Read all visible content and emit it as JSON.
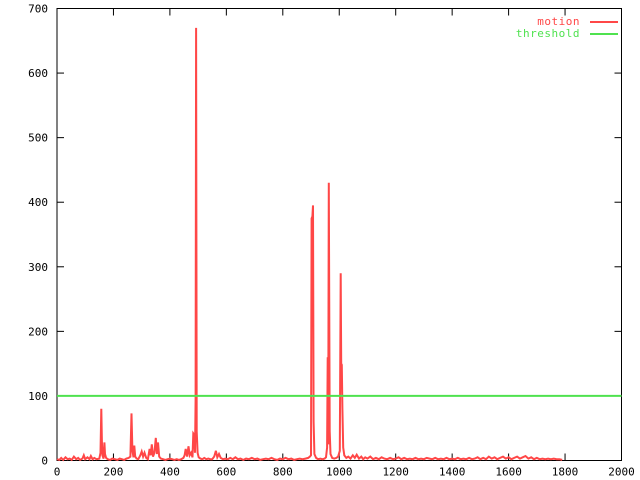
{
  "page": {
    "background": "#ffffff"
  },
  "chart_data": {
    "type": "line",
    "title": "",
    "xlabel": "",
    "ylabel": "",
    "xlim": [
      0,
      2000
    ],
    "ylim": [
      0,
      700
    ],
    "xticks": [
      0,
      200,
      400,
      600,
      800,
      1000,
      1200,
      1400,
      1600,
      1800,
      2000
    ],
    "yticks": [
      0,
      100,
      200,
      300,
      400,
      500,
      600,
      700
    ],
    "grid": false,
    "legend_position": "top-right-inside",
    "threshold_value": 100,
    "series": [
      {
        "name": "motion",
        "color": "#ff4747",
        "points": [
          [
            0,
            2
          ],
          [
            8,
            1
          ],
          [
            15,
            4
          ],
          [
            22,
            1
          ],
          [
            30,
            5
          ],
          [
            38,
            2
          ],
          [
            45,
            3
          ],
          [
            52,
            1
          ],
          [
            60,
            6
          ],
          [
            68,
            2
          ],
          [
            75,
            4
          ],
          [
            82,
            1
          ],
          [
            90,
            3
          ],
          [
            95,
            8
          ],
          [
            100,
            2
          ],
          [
            108,
            5
          ],
          [
            115,
            2
          ],
          [
            120,
            7
          ],
          [
            126,
            2
          ],
          [
            132,
            4
          ],
          [
            140,
            2
          ],
          [
            150,
            3
          ],
          [
            154,
            12
          ],
          [
            157,
            80
          ],
          [
            159,
            30
          ],
          [
            161,
            8
          ],
          [
            165,
            3
          ],
          [
            168,
            28
          ],
          [
            170,
            10
          ],
          [
            174,
            4
          ],
          [
            180,
            2
          ],
          [
            188,
            1
          ],
          [
            196,
            3
          ],
          [
            205,
            2
          ],
          [
            214,
            1
          ],
          [
            222,
            3
          ],
          [
            230,
            2
          ],
          [
            238,
            1
          ],
          [
            246,
            3
          ],
          [
            254,
            4
          ],
          [
            260,
            6
          ],
          [
            264,
            73
          ],
          [
            267,
            15
          ],
          [
            271,
            5
          ],
          [
            274,
            23
          ],
          [
            277,
            6
          ],
          [
            282,
            3
          ],
          [
            288,
            2
          ],
          [
            295,
            8
          ],
          [
            300,
            14
          ],
          [
            305,
            6
          ],
          [
            310,
            12
          ],
          [
            316,
            4
          ],
          [
            322,
            2
          ],
          [
            328,
            18
          ],
          [
            332,
            8
          ],
          [
            336,
            25
          ],
          [
            340,
            6
          ],
          [
            345,
            12
          ],
          [
            350,
            35
          ],
          [
            354,
            10
          ],
          [
            358,
            28
          ],
          [
            362,
            6
          ],
          [
            368,
            3
          ],
          [
            376,
            2
          ],
          [
            384,
            1
          ],
          [
            392,
            2
          ],
          [
            400,
            3
          ],
          [
            408,
            2
          ],
          [
            416,
            1
          ],
          [
            424,
            2
          ],
          [
            432,
            1
          ],
          [
            440,
            2
          ],
          [
            448,
            4
          ],
          [
            452,
            8
          ],
          [
            456,
            18
          ],
          [
            461,
            6
          ],
          [
            466,
            22
          ],
          [
            470,
            8
          ],
          [
            475,
            12
          ],
          [
            480,
            5
          ],
          [
            483,
            42
          ],
          [
            486,
            40
          ],
          [
            489,
            12
          ],
          [
            491,
            95
          ],
          [
            493,
            670
          ],
          [
            495,
            45
          ],
          [
            498,
            12
          ],
          [
            502,
            5
          ],
          [
            508,
            3
          ],
          [
            515,
            2
          ],
          [
            522,
            4
          ],
          [
            529,
            2
          ],
          [
            536,
            3
          ],
          [
            543,
            2
          ],
          [
            550,
            2
          ],
          [
            557,
            6
          ],
          [
            563,
            15
          ],
          [
            568,
            5
          ],
          [
            574,
            10
          ],
          [
            580,
            4
          ],
          [
            588,
            2
          ],
          [
            596,
            3
          ],
          [
            605,
            2
          ],
          [
            614,
            4
          ],
          [
            623,
            2
          ],
          [
            632,
            5
          ],
          [
            641,
            2
          ],
          [
            650,
            3
          ],
          [
            660,
            1
          ],
          [
            670,
            3
          ],
          [
            680,
            2
          ],
          [
            690,
            4
          ],
          [
            700,
            2
          ],
          [
            710,
            3
          ],
          [
            720,
            1
          ],
          [
            730,
            2
          ],
          [
            740,
            3
          ],
          [
            750,
            2
          ],
          [
            760,
            4
          ],
          [
            770,
            2
          ],
          [
            780,
            1
          ],
          [
            790,
            3
          ],
          [
            800,
            2
          ],
          [
            810,
            4
          ],
          [
            820,
            2
          ],
          [
            830,
            3
          ],
          [
            840,
            1
          ],
          [
            850,
            2
          ],
          [
            860,
            3
          ],
          [
            870,
            2
          ],
          [
            880,
            3
          ],
          [
            890,
            4
          ],
          [
            896,
            6
          ],
          [
            900,
            8
          ],
          [
            902,
            375
          ],
          [
            905,
            378
          ],
          [
            907,
            395
          ],
          [
            909,
            60
          ],
          [
            912,
            10
          ],
          [
            918,
            4
          ],
          [
            925,
            2
          ],
          [
            933,
            3
          ],
          [
            941,
            2
          ],
          [
            948,
            3
          ],
          [
            953,
            5
          ],
          [
            957,
            20
          ],
          [
            959,
            160
          ],
          [
            961,
            25
          ],
          [
            963,
            430
          ],
          [
            966,
            45
          ],
          [
            969,
            10
          ],
          [
            975,
            4
          ],
          [
            982,
            3
          ],
          [
            990,
            4
          ],
          [
            996,
            6
          ],
          [
            1002,
            15
          ],
          [
            1005,
            290
          ],
          [
            1007,
            150
          ],
          [
            1009,
            148
          ],
          [
            1011,
            80
          ],
          [
            1014,
            20
          ],
          [
            1018,
            8
          ],
          [
            1025,
            4
          ],
          [
            1032,
            6
          ],
          [
            1040,
            3
          ],
          [
            1048,
            8
          ],
          [
            1055,
            4
          ],
          [
            1062,
            9
          ],
          [
            1070,
            3
          ],
          [
            1078,
            6
          ],
          [
            1085,
            2
          ],
          [
            1092,
            5
          ],
          [
            1100,
            3
          ],
          [
            1110,
            6
          ],
          [
            1120,
            2
          ],
          [
            1130,
            4
          ],
          [
            1140,
            2
          ],
          [
            1150,
            5
          ],
          [
            1160,
            3
          ],
          [
            1170,
            2
          ],
          [
            1180,
            4
          ],
          [
            1190,
            2
          ],
          [
            1200,
            3
          ],
          [
            1210,
            5
          ],
          [
            1220,
            2
          ],
          [
            1230,
            4
          ],
          [
            1240,
            2
          ],
          [
            1250,
            3
          ],
          [
            1260,
            2
          ],
          [
            1270,
            4
          ],
          [
            1280,
            2
          ],
          [
            1290,
            3
          ],
          [
            1300,
            2
          ],
          [
            1310,
            4
          ],
          [
            1320,
            3
          ],
          [
            1330,
            2
          ],
          [
            1340,
            4
          ],
          [
            1350,
            2
          ],
          [
            1360,
            3
          ],
          [
            1370,
            2
          ],
          [
            1380,
            4
          ],
          [
            1390,
            2
          ],
          [
            1400,
            3
          ],
          [
            1410,
            2
          ],
          [
            1420,
            4
          ],
          [
            1430,
            2
          ],
          [
            1440,
            3
          ],
          [
            1450,
            2
          ],
          [
            1460,
            4
          ],
          [
            1470,
            2
          ],
          [
            1480,
            3
          ],
          [
            1490,
            5
          ],
          [
            1500,
            2
          ],
          [
            1510,
            4
          ],
          [
            1520,
            2
          ],
          [
            1530,
            6
          ],
          [
            1540,
            3
          ],
          [
            1550,
            5
          ],
          [
            1560,
            2
          ],
          [
            1570,
            4
          ],
          [
            1580,
            6
          ],
          [
            1590,
            3
          ],
          [
            1600,
            5
          ],
          [
            1610,
            2
          ],
          [
            1620,
            4
          ],
          [
            1630,
            6
          ],
          [
            1640,
            3
          ],
          [
            1650,
            5
          ],
          [
            1660,
            7
          ],
          [
            1670,
            3
          ],
          [
            1680,
            5
          ],
          [
            1690,
            2
          ],
          [
            1700,
            4
          ],
          [
            1710,
            2
          ],
          [
            1720,
            3
          ],
          [
            1730,
            2
          ],
          [
            1740,
            3
          ],
          [
            1750,
            2
          ],
          [
            1760,
            3
          ],
          [
            1770,
            2
          ],
          [
            1780,
            2
          ],
          [
            1790,
            1
          ]
        ]
      },
      {
        "name": "threshold",
        "color": "#4fe24f",
        "points": [
          [
            0,
            100
          ],
          [
            2000,
            100
          ]
        ]
      }
    ]
  }
}
